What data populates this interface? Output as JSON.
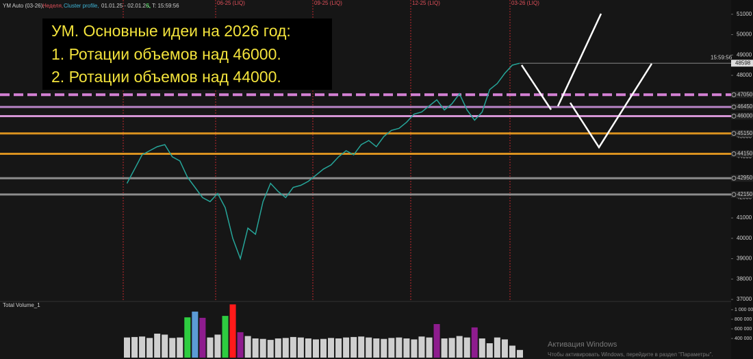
{
  "header": {
    "symbol": "YM Auto (03-26),",
    "interval": "Неделя,",
    "indicator": "Cluster profile,",
    "range": "01.01.25 - 02.01.26,",
    "session": "S,",
    "time": "T: 15:59:56"
  },
  "annotation": {
    "lines": [
      "УМ. Основные идеи на 2026 год:",
      "1. Ротации объемов над 46000.",
      "2. Ротации объемов над 44000."
    ]
  },
  "period_markers": [
    "06-25 (LIQ)",
    "09-25 (LIQ)",
    "12-25 (LIQ)",
    "03-26 (LIQ)"
  ],
  "watermark": [
    "Активация Windows",
    "Чтобы активировать Windows, перейдите в раздел \"Параметры\"."
  ],
  "chart_data": [
    {
      "type": "line",
      "color": "#26a69a",
      "values": [
        42700,
        43400,
        44100,
        44300,
        44500,
        44600,
        44000,
        43800,
        43000,
        42500,
        42000,
        41800,
        42200,
        41500,
        40000,
        39000,
        40500,
        40200,
        41800,
        42700,
        42300,
        42000,
        42500,
        42600,
        42800,
        43100,
        43400,
        43600,
        44000,
        44300,
        44100,
        44600,
        44800,
        44500,
        45000,
        45300,
        45400,
        45700,
        46100,
        46200,
        46500,
        46800,
        46300,
        46600,
        47100,
        46300,
        45800,
        46200,
        47300,
        47600,
        48100,
        48500,
        48598
      ],
      "ylim": [
        36900,
        51700
      ],
      "yticks": [
        37000,
        38000,
        39000,
        40000,
        41000,
        42000,
        43000,
        44000,
        45000,
        46000,
        47000,
        48000,
        49000,
        50000,
        51000
      ],
      "levels": [
        {
          "value": 47050,
          "color": "#e88ce8",
          "dashed": true
        },
        {
          "value": 46450,
          "color": "#c98fd8",
          "dashed": false
        },
        {
          "value": 46000,
          "color": "#e9a3e9",
          "dashed": false
        },
        {
          "value": 45150,
          "color": "#f0a020",
          "dashed": false
        },
        {
          "value": 44150,
          "color": "#f0a020",
          "dashed": false
        },
        {
          "value": 42950,
          "color": "#9a9a9a",
          "dashed": false
        },
        {
          "value": 42150,
          "color": "#9a9a9a",
          "dashed": false
        }
      ],
      "last_price": 48598,
      "last_time": "15:59:56"
    },
    {
      "type": "bar",
      "title": "Total Volume_1",
      "values": [
        420000,
        430000,
        440000,
        410000,
        500000,
        480000,
        410000,
        420000,
        840000,
        960000,
        830000,
        420000,
        480000,
        870000,
        1110000,
        530000,
        450000,
        400000,
        390000,
        370000,
        400000,
        410000,
        430000,
        420000,
        400000,
        380000,
        390000,
        410000,
        400000,
        420000,
        430000,
        440000,
        420000,
        400000,
        390000,
        410000,
        420000,
        400000,
        380000,
        440000,
        420000,
        700000,
        400000,
        410000,
        450000,
        420000,
        630000,
        400000,
        300000,
        420000,
        380000,
        250000,
        160000
      ],
      "colors": [
        "#cfcfcf",
        "#cfcfcf",
        "#cfcfcf",
        "#cfcfcf",
        "#cfcfcf",
        "#cfcfcf",
        "#cfcfcf",
        "#cfcfcf",
        "#2ecc40",
        "#5b9bd5",
        "#8e1c8e",
        "#cfcfcf",
        "#cfcfcf",
        "#2ecc40",
        "#ff1a1a",
        "#8e1c8e",
        "#cfcfcf",
        "#cfcfcf",
        "#cfcfcf",
        "#cfcfcf",
        "#cfcfcf",
        "#cfcfcf",
        "#cfcfcf",
        "#cfcfcf",
        "#cfcfcf",
        "#cfcfcf",
        "#cfcfcf",
        "#cfcfcf",
        "#cfcfcf",
        "#cfcfcf",
        "#cfcfcf",
        "#cfcfcf",
        "#cfcfcf",
        "#cfcfcf",
        "#cfcfcf",
        "#cfcfcf",
        "#cfcfcf",
        "#cfcfcf",
        "#cfcfcf",
        "#cfcfcf",
        "#cfcfcf",
        "#8e1c8e",
        "#cfcfcf",
        "#cfcfcf",
        "#cfcfcf",
        "#cfcfcf",
        "#8e1c8e",
        "#cfcfcf",
        "#cfcfcf",
        "#cfcfcf",
        "#cfcfcf",
        "#cfcfcf",
        "#cfcfcf"
      ],
      "ylim": [
        0,
        1100000
      ],
      "yticks": [
        {
          "value": 400000,
          "label": "400 000"
        },
        {
          "value": 600000,
          "label": "600 000"
        },
        {
          "value": 800000,
          "label": "800 000"
        },
        {
          "value": 1000000,
          "label": "1 000 000"
        }
      ]
    }
  ]
}
